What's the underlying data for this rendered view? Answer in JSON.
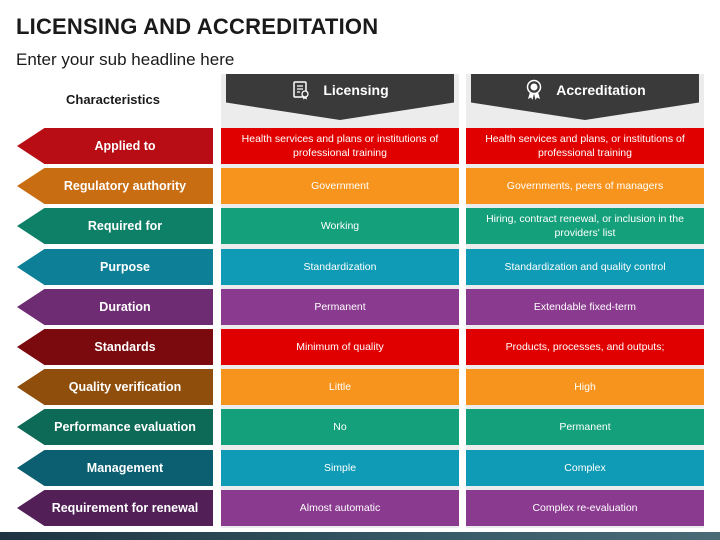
{
  "header": {
    "title": "LICENSING AND ACCREDITATION",
    "subtitle": "Enter your sub headline here"
  },
  "characteristics_label": "Characteristics",
  "columns": [
    {
      "label": "Licensing",
      "icon": "certificate-document-icon"
    },
    {
      "label": "Accreditation",
      "icon": "award-medal-icon"
    }
  ],
  "colors": {
    "header_dark": "#3a3a3a",
    "column_bg": "#ececec",
    "row_colors": [
      "#e00000",
      "#f7941e",
      "#13a07a",
      "#0f9bb5",
      "#8a3a8f",
      "#e00000",
      "#f7941e",
      "#13a07a",
      "#0f9bb5",
      "#8a3a8f"
    ],
    "arrow_colors": [
      "#b80d14",
      "#c96d12",
      "#0f8068",
      "#0d7f96",
      "#6e2d73",
      "#7a0a0e",
      "#8f4e0b",
      "#0d6a56",
      "#0c5f70",
      "#521f57"
    ]
  },
  "rows": [
    {
      "label": "Applied to",
      "licensing": "Health services and plans or institutions of professional training",
      "accreditation": "Health services and plans, or institutions of professional training"
    },
    {
      "label": "Regulatory authority",
      "licensing": "Government",
      "accreditation": "Governments, peers of managers"
    },
    {
      "label": "Required for",
      "licensing": "Working",
      "accreditation": "Hiring, contract renewal, or inclusion in the providers' list"
    },
    {
      "label": "Purpose",
      "licensing": "Standardization",
      "accreditation": "Standardization and quality control"
    },
    {
      "label": "Duration",
      "licensing": "Permanent",
      "accreditation": "Extendable fixed-term"
    },
    {
      "label": "Standards",
      "licensing": "Minimum of quality",
      "accreditation": "Products, processes, and outputs;"
    },
    {
      "label": "Quality verification",
      "licensing": "Little",
      "accreditation": "High"
    },
    {
      "label": "Performance evaluation",
      "licensing": "No",
      "accreditation": "Permanent"
    },
    {
      "label": "Management",
      "licensing": "Simple",
      "accreditation": "Complex"
    },
    {
      "label": "Requirement for renewal",
      "licensing": "Almost automatic",
      "accreditation": "Complex re-evaluation"
    }
  ]
}
